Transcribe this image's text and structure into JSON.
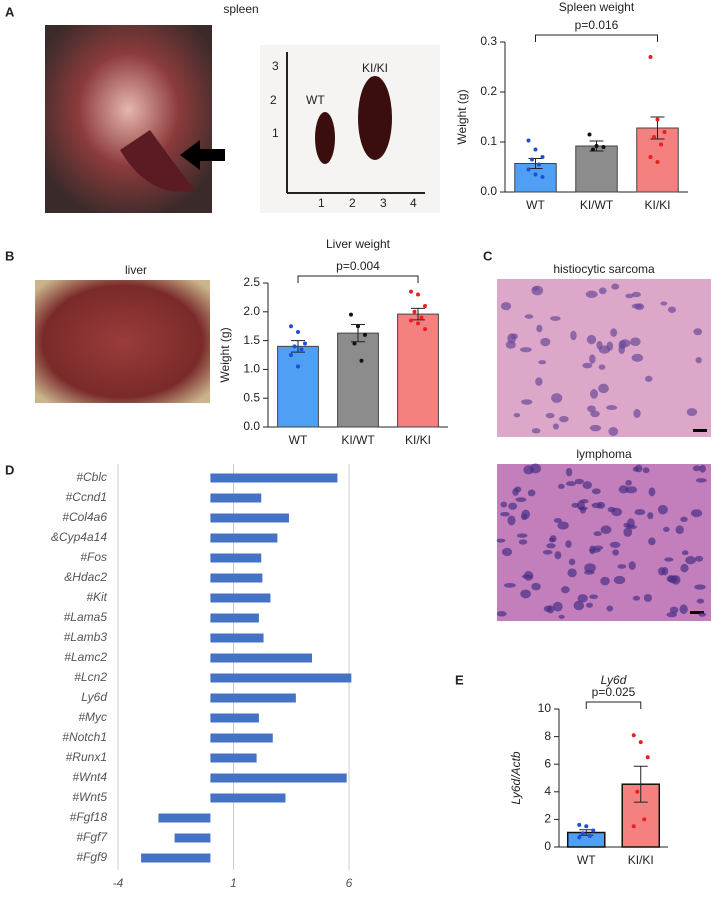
{
  "labels": {
    "a": "A",
    "b": "B",
    "c": "C",
    "d": "D",
    "e": "E"
  },
  "photos": {
    "spleen": "spleen",
    "wt": "WT",
    "kiki": "KI/KI",
    "liver": "liver",
    "histiocytic": "histiocytic sarcoma",
    "lymphoma": "lymphoma",
    "ruler_y": [
      "3",
      "2",
      "1"
    ],
    "ruler_x": [
      "1",
      "2",
      "3",
      "4"
    ]
  },
  "chart_data": [
    {
      "type": "bar",
      "title": "Spleen weight",
      "y_label": "Weight (g)",
      "categories": [
        "WT",
        "KI/WT",
        "KI/KI"
      ],
      "values": [
        0.057,
        0.092,
        0.128
      ],
      "errors": [
        0.01,
        0.01,
        0.022
      ],
      "colors": [
        "#4f9ff5",
        "#8c8c8c",
        "#f58080"
      ],
      "point_colors": [
        "#1f4fd8",
        "#111111",
        "#e82020"
      ],
      "points": [
        [
          0.103,
          0.085,
          0.07,
          0.065,
          0.055,
          0.045,
          0.035,
          0.03
        ],
        [
          0.115,
          0.092,
          0.09,
          0.085
        ],
        [
          0.27,
          0.145,
          0.12,
          0.11,
          0.095,
          0.07,
          0.06
        ]
      ],
      "annotation": "p=0.016",
      "ylim": [
        0,
        0.3
      ],
      "yticks": [
        {
          "value": 0,
          "label": "0.0"
        },
        0.1,
        0.2,
        0.3
      ]
    },
    {
      "type": "bar",
      "title": "Liver weight",
      "y_label": "Weight (g)",
      "categories": [
        "WT",
        "KI/WT",
        "KI/KI"
      ],
      "values": [
        1.4,
        1.63,
        1.96
      ],
      "errors": [
        0.1,
        0.15,
        0.1
      ],
      "colors": [
        "#4f9ff5",
        "#8c8c8c",
        "#f58080"
      ],
      "point_colors": [
        "#1f4fd8",
        "#111111",
        "#e82020"
      ],
      "points": [
        [
          1.75,
          1.65,
          1.45,
          1.4,
          1.35,
          1.25,
          1.05
        ],
        [
          1.95,
          1.75,
          1.6,
          1.45,
          1.15
        ],
        [
          2.35,
          2.3,
          2.1,
          2.0,
          1.9,
          1.85,
          1.8,
          1.7
        ]
      ],
      "annotation": "p=0.004",
      "ylim": [
        0,
        2.5
      ],
      "yticks": [
        {
          "value": 0,
          "label": "0.0"
        },
        0.5,
        {
          "value": 1,
          "label": "1.0"
        },
        1.5,
        {
          "value": 2,
          "label": "2.0"
        },
        2.5
      ]
    },
    {
      "type": "barh",
      "color": "#4472c4",
      "grid": true,
      "categories": [
        "#Cblc",
        "#Ccnd1",
        "#Col4a6",
        "&Cyp4a14",
        "#Fos",
        "&Hdac2",
        "#Kit",
        "#Lama5",
        "#Lamb3",
        "#Lamc2",
        "#Lcn2",
        "Ly6d",
        "#Myc",
        "#Notch1",
        "#Runx1",
        "#Wnt4",
        "#Wnt5",
        "#Fgf18",
        "#Fgf7",
        "#Fgf9"
      ],
      "values": [
        5.5,
        2.2,
        3.4,
        2.9,
        2.2,
        2.25,
        2.6,
        2.1,
        2.3,
        4.4,
        6.1,
        3.7,
        2.1,
        2.7,
        2.0,
        5.9,
        3.25,
        -2.25,
        -1.55,
        -3.0
      ],
      "xlim": [
        -4,
        6
      ],
      "xticks": [
        -4,
        1,
        6
      ]
    },
    {
      "type": "bar",
      "title": "Ly6d",
      "y_label": "Ly6d/Actb",
      "categories": [
        "WT",
        "KI/KI"
      ],
      "values": [
        1.05,
        4.55
      ],
      "errors": [
        0.2,
        1.3
      ],
      "colors": [
        "#4f9ff5",
        "#f58080"
      ],
      "point_colors": [
        "#1f4fd8",
        "#e82020"
      ],
      "points": [
        [
          1.6,
          1.5,
          1.2,
          1.0,
          0.8,
          0.7
        ],
        [
          8.1,
          7.6,
          6.5,
          4.0,
          2.0,
          1.5
        ]
      ],
      "annotation": "p=0.025",
      "ylim": [
        0,
        10
      ],
      "yticks": [
        0,
        2,
        4,
        6,
        8,
        10
      ]
    }
  ]
}
